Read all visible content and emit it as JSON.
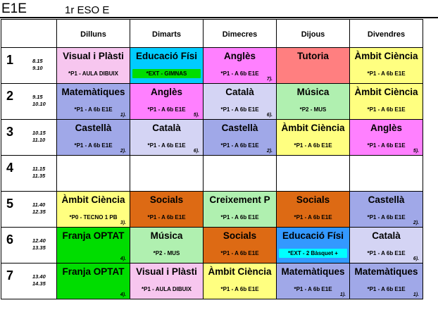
{
  "header": {
    "title": "E1E",
    "subtitle": "1r ESO E"
  },
  "days": [
    "Dilluns",
    "Dimarts",
    "Dimecres",
    "Dijous",
    "Divendres"
  ],
  "slots": [
    {
      "num": "1",
      "start": "8.15",
      "end": "9.10"
    },
    {
      "num": "2",
      "start": "9.15",
      "end": "10.10"
    },
    {
      "num": "3",
      "start": "10.15",
      "end": "11.10"
    },
    {
      "num": "4",
      "start": "11.15",
      "end": "11.35"
    },
    {
      "num": "5",
      "start": "11.40",
      "end": "12.35"
    },
    {
      "num": "6",
      "start": "12.40",
      "end": "13.35"
    },
    {
      "num": "7",
      "start": "13.40",
      "end": "14.35"
    }
  ],
  "cells": [
    [
      {
        "subject": "Visual i Plàsti",
        "group": "*P1 - AULA DIBUIX",
        "note": "",
        "bg": "#f7c6ef",
        "group_bg": ""
      },
      {
        "subject": "Educació Físi",
        "group": "*EXT - GIMNAS",
        "note": "",
        "bg": "#00ccff",
        "group_bg": "#00dd00"
      },
      {
        "subject": "Anglès",
        "group": "*P1 - A 6b E1E",
        "note": "7).",
        "bg": "#ff80ff",
        "group_bg": ""
      },
      {
        "subject": "Tutoria",
        "group": "",
        "note": "",
        "bg": "#ff7f80",
        "group_bg": ""
      },
      {
        "subject": "Àmbit Ciència",
        "group": "*P1 - A 6b E1E",
        "note": "",
        "bg": "#ffff80",
        "group_bg": ""
      }
    ],
    [
      {
        "subject": "Matemàtiques",
        "group": "*P1 - A 6b E1E",
        "note": "1).",
        "bg": "#a0a8e8",
        "group_bg": ""
      },
      {
        "subject": "Anglès",
        "group": "*P1 - A 6b E1E",
        "note": "5).",
        "bg": "#ff80ff",
        "group_bg": ""
      },
      {
        "subject": "Català",
        "group": "*P1 - A 6b E1E",
        "note": "6).",
        "bg": "#d4d4f4",
        "group_bg": ""
      },
      {
        "subject": "Música",
        "group": "*P2 - MUS",
        "note": "",
        "bg": "#b0f0b0",
        "group_bg": ""
      },
      {
        "subject": "Àmbit Ciència",
        "group": "*P1 - A 6b E1E",
        "note": "",
        "bg": "#ffff80",
        "group_bg": ""
      }
    ],
    [
      {
        "subject": "Castellà",
        "group": "*P1 - A 6b E1E",
        "note": "2).",
        "bg": "#a0a8e8",
        "group_bg": ""
      },
      {
        "subject": "Català",
        "group": "*P1 - A 6b E1E",
        "note": "6).",
        "bg": "#d4d4f4",
        "group_bg": ""
      },
      {
        "subject": "Castellà",
        "group": "*P1 - A 6b E1E",
        "note": "2).",
        "bg": "#a0a8e8",
        "group_bg": ""
      },
      {
        "subject": "Àmbit Ciència",
        "group": "*P1 - A 6b E1E",
        "note": "",
        "bg": "#ffff80",
        "group_bg": ""
      },
      {
        "subject": "Anglès",
        "group": "*P1 - A 6b E1E",
        "note": "5).",
        "bg": "#ff80ff",
        "group_bg": ""
      }
    ],
    [
      {
        "subject": "",
        "group": "",
        "note": "",
        "bg": "#ffffff",
        "group_bg": ""
      },
      {
        "subject": "",
        "group": "",
        "note": "",
        "bg": "#ffffff",
        "group_bg": ""
      },
      {
        "subject": "",
        "group": "",
        "note": "",
        "bg": "#ffffff",
        "group_bg": ""
      },
      {
        "subject": "",
        "group": "",
        "note": "",
        "bg": "#ffffff",
        "group_bg": ""
      },
      {
        "subject": "",
        "group": "",
        "note": "",
        "bg": "#ffffff",
        "group_bg": ""
      }
    ],
    [
      {
        "subject": "Àmbit Ciència",
        "group": "*P0 - TECNO 1 PB",
        "note": "3).",
        "bg": "#ffff80",
        "group_bg": ""
      },
      {
        "subject": "Socials",
        "group": "*P1 - A 6b E1E",
        "note": "",
        "bg": "#dd6a14",
        "group_bg": ""
      },
      {
        "subject": "Creixement P",
        "group": "*P1 - A 6b E1E",
        "note": "",
        "bg": "#b0f0b0",
        "group_bg": ""
      },
      {
        "subject": "Socials",
        "group": "*P1 - A 6b E1E",
        "note": "",
        "bg": "#dd6a14",
        "group_bg": ""
      },
      {
        "subject": "Castellà",
        "group": "*P1 - A 6b E1E",
        "note": "2).",
        "bg": "#a0a8e8",
        "group_bg": ""
      }
    ],
    [
      {
        "subject": "Franja OPTAT",
        "group": "",
        "note": "4).",
        "bg": "#00dd00",
        "group_bg": ""
      },
      {
        "subject": "Música",
        "group": "*P2 - MUS",
        "note": "",
        "bg": "#b0f0b0",
        "group_bg": ""
      },
      {
        "subject": "Socials",
        "group": "*P1 - A 6b E1E",
        "note": "",
        "bg": "#dd6a14",
        "group_bg": ""
      },
      {
        "subject": "Educació Físi",
        "group": "*EXT - 2 Bàsquet +",
        "note": "",
        "bg": "#3399ff",
        "group_bg": "#00ffff"
      },
      {
        "subject": "Català",
        "group": "*P1 - A 6b E1E",
        "note": "6).",
        "bg": "#d4d4f4",
        "group_bg": ""
      }
    ],
    [
      {
        "subject": "Franja OPTAT",
        "group": "",
        "note": "4).",
        "bg": "#00dd00",
        "group_bg": ""
      },
      {
        "subject": "Visual i Plàsti",
        "group": "*P1 - AULA DIBUIX",
        "note": "",
        "bg": "#f7c6ef",
        "group_bg": ""
      },
      {
        "subject": "Àmbit Ciència",
        "group": "*P1 - A 6b E1E",
        "note": "",
        "bg": "#ffff80",
        "group_bg": ""
      },
      {
        "subject": "Matemàtiques",
        "group": "*P1 - A 6b E1E",
        "note": "1).",
        "bg": "#a0a8e8",
        "group_bg": ""
      },
      {
        "subject": "Matemàtiques",
        "group": "*P1 - A 6b E1E",
        "note": "1).",
        "bg": "#a0a8e8",
        "group_bg": ""
      }
    ]
  ]
}
